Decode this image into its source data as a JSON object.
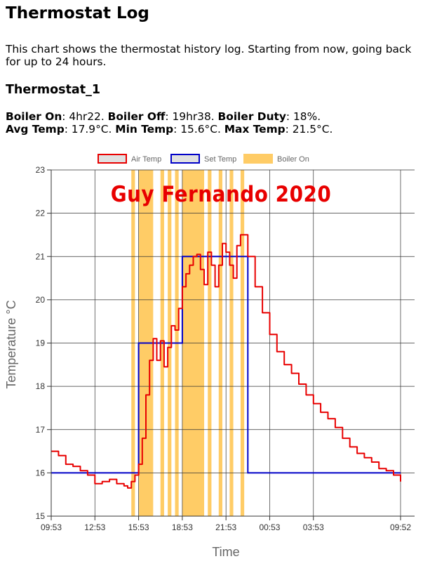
{
  "page": {
    "title": "Thermostat Log",
    "intro": "This chart shows the thermostat history log. Starting from now, going back for up to 24 hours.",
    "device": "Thermostat_1"
  },
  "stats": {
    "boiler_on_label": "Boiler On",
    "boiler_on_value": ": 4hr22. ",
    "boiler_off_label": "Boiler Off",
    "boiler_off_value": ": 19hr38. ",
    "duty_label": "Boiler Duty",
    "duty_value": ": 18%.",
    "avg_label": "Avg Temp",
    "avg_value": ": 17.9°C. ",
    "min_label": "Min Temp",
    "min_value": ": 15.6°C. ",
    "max_label": "Max Temp",
    "max_value": ": 21.5°C."
  },
  "watermark": "Guy Fernando 2020",
  "chart_data": {
    "type": "line",
    "xlabel": "Time",
    "ylabel": "Temperature °C",
    "ylim": [
      15,
      23
    ],
    "yticks": [
      "15",
      "16",
      "17",
      "18",
      "19",
      "20",
      "21",
      "22",
      "23"
    ],
    "xlim": [
      "09:53",
      "09:52"
    ],
    "xticks": [
      {
        "x": "09:53",
        "label": "09:53"
      },
      {
        "x": "12:53",
        "label": "12:53"
      },
      {
        "x": "15:53",
        "label": "15:53"
      },
      {
        "x": "18:53",
        "label": "18:53"
      },
      {
        "x": "21:53",
        "label": "21:53"
      },
      {
        "x": "00:53",
        "label": "00:53"
      },
      {
        "x": "03:53",
        "label": "03:53"
      },
      {
        "x": "09:52",
        "label": "09:52"
      }
    ],
    "grid": true,
    "legend_position": "top-center",
    "colors": {
      "air_temp": "#e80000",
      "set_temp": "#0000c8",
      "boiler_on": "#ffcc66",
      "legend_fill": "#e0e0e0"
    },
    "series": [
      {
        "name": "Air Temp",
        "type": "line",
        "points": [
          [
            "09:53",
            16.5
          ],
          [
            "10:23",
            16.4
          ],
          [
            "10:53",
            16.2
          ],
          [
            "11:23",
            16.15
          ],
          [
            "11:53",
            16.05
          ],
          [
            "12:23",
            15.95
          ],
          [
            "12:53",
            15.75
          ],
          [
            "13:23",
            15.8
          ],
          [
            "13:53",
            15.85
          ],
          [
            "14:23",
            15.75
          ],
          [
            "14:53",
            15.7
          ],
          [
            "15:08",
            15.65
          ],
          [
            "15:23",
            15.8
          ],
          [
            "15:38",
            15.95
          ],
          [
            "15:53",
            16.2
          ],
          [
            "16:08",
            16.8
          ],
          [
            "16:23",
            17.8
          ],
          [
            "16:38",
            18.6
          ],
          [
            "16:53",
            19.1
          ],
          [
            "17:08",
            18.6
          ],
          [
            "17:23",
            19.05
          ],
          [
            "17:38",
            18.45
          ],
          [
            "17:53",
            18.9
          ],
          [
            "18:08",
            19.4
          ],
          [
            "18:23",
            19.3
          ],
          [
            "18:38",
            19.8
          ],
          [
            "18:53",
            20.3
          ],
          [
            "19:08",
            20.6
          ],
          [
            "19:23",
            20.8
          ],
          [
            "19:38",
            21.0
          ],
          [
            "19:53",
            21.05
          ],
          [
            "20:08",
            20.7
          ],
          [
            "20:23",
            20.35
          ],
          [
            "20:38",
            21.1
          ],
          [
            "20:53",
            20.8
          ],
          [
            "21:08",
            20.3
          ],
          [
            "21:23",
            20.8
          ],
          [
            "21:38",
            21.3
          ],
          [
            "21:53",
            21.1
          ],
          [
            "22:08",
            20.8
          ],
          [
            "22:23",
            20.5
          ],
          [
            "22:38",
            21.25
          ],
          [
            "22:53",
            21.5
          ],
          [
            "23:23",
            21.0
          ],
          [
            "23:53",
            20.3
          ],
          [
            "00:23",
            19.7
          ],
          [
            "00:53",
            19.2
          ],
          [
            "01:23",
            18.8
          ],
          [
            "01:53",
            18.5
          ],
          [
            "02:23",
            18.3
          ],
          [
            "02:53",
            18.05
          ],
          [
            "03:23",
            17.8
          ],
          [
            "03:53",
            17.6
          ],
          [
            "04:23",
            17.4
          ],
          [
            "04:53",
            17.25
          ],
          [
            "05:23",
            17.05
          ],
          [
            "05:53",
            16.8
          ],
          [
            "06:23",
            16.6
          ],
          [
            "06:53",
            16.45
          ],
          [
            "07:23",
            16.35
          ],
          [
            "07:53",
            16.25
          ],
          [
            "08:23",
            16.1
          ],
          [
            "08:53",
            16.05
          ],
          [
            "09:23",
            15.95
          ],
          [
            "09:52",
            15.8
          ]
        ]
      },
      {
        "name": "Set Temp",
        "type": "step",
        "points": [
          [
            "09:53",
            16
          ],
          [
            "15:53",
            16
          ],
          [
            "15:53",
            19
          ],
          [
            "18:53",
            19
          ],
          [
            "18:53",
            21
          ],
          [
            "23:23",
            21
          ],
          [
            "23:23",
            16
          ],
          [
            "09:52",
            16
          ]
        ]
      },
      {
        "name": "Boiler On",
        "type": "bands",
        "intervals": [
          [
            "15:23",
            "15:38"
          ],
          [
            "15:53",
            "16:53"
          ],
          [
            "17:23",
            "17:38"
          ],
          [
            "17:53",
            "18:08"
          ],
          [
            "18:23",
            "18:38"
          ],
          [
            "18:53",
            "20:23"
          ],
          [
            "20:38",
            "20:53"
          ],
          [
            "21:23",
            "21:38"
          ],
          [
            "22:08",
            "22:23"
          ],
          [
            "22:53",
            "23:08"
          ]
        ]
      }
    ]
  }
}
